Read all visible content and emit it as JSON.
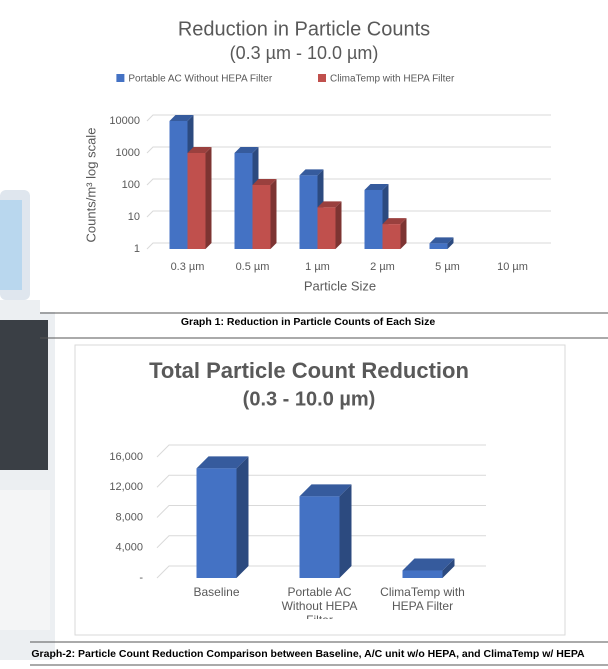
{
  "chart_data": [
    {
      "type": "bar3d",
      "title": "Reduction in Particle Counts",
      "subtitle": "(0.3 µm - 10.0 µm)",
      "categories": [
        "0.3 µm",
        "0.5 µm",
        "1 µm",
        "2 µm",
        "5 µm",
        "10 µm"
      ],
      "series": [
        {
          "name": "Portable AC Without HEPA Filter",
          "color": "#4472c4",
          "values": [
            10000,
            1000,
            200,
            70,
            1.5,
            null
          ]
        },
        {
          "name": "ClimaTemp with HEPA Filter",
          "color": "#c0504d",
          "values": [
            1000,
            100,
            20,
            6,
            null,
            null
          ]
        }
      ],
      "y_label": "Counts/m³ log scale",
      "x_label": "Particle Size",
      "log_scale": true,
      "ylim": [
        1,
        10000
      ],
      "yticks": [
        1,
        10,
        100,
        1000,
        10000
      ],
      "grid": true,
      "legend": "top",
      "caption": "Graph 1: Reduction in Particle Counts of Each Size"
    },
    {
      "type": "bar3d",
      "title": "Total Particle Count Reduction",
      "subtitle": "(0.3 - 10.0 µm)",
      "categories": [
        "Baseline",
        "Portable AC Without HEPA Filter",
        "ClimaTemp with HEPA Filter"
      ],
      "values": [
        14500,
        10800,
        1000
      ],
      "color": "#4472c4",
      "log_scale": false,
      "ylim": [
        0,
        16000
      ],
      "yticks": [
        {
          "value": 0,
          "label": "-"
        },
        {
          "value": 4000,
          "label": "4,000"
        },
        {
          "value": 8000,
          "label": "8,000"
        },
        {
          "value": 12000,
          "label": "12,000"
        },
        {
          "value": 16000,
          "label": "16,000"
        }
      ],
      "grid": true,
      "caption": "Graph-2: Particle Count Reduction Comparison between Baseline, A/C unit w/o HEPA, and ClimaTemp w/ HEPA"
    }
  ]
}
